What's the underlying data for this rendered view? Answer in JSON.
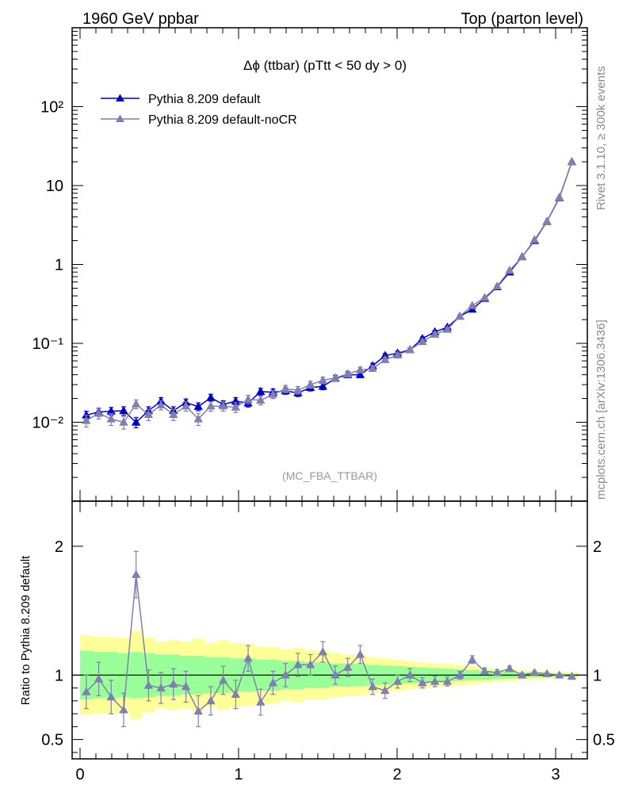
{
  "header": {
    "left": "1960 GeV ppbar",
    "right": "Top (parton level)"
  },
  "side_labels": {
    "rivet": "Rivet 3.1.10, ≥ 300k events",
    "mcplots": "mcplots.cern.ch [arXiv:1306.3436]"
  },
  "colors": {
    "default": "#0000cc",
    "nocr": "#7f7fb2",
    "band_inner": "#99ff99",
    "band_outer": "#ffff99"
  },
  "chart_data": [
    {
      "type": "line",
      "title": "Δϕ (ttbar) (pTtt < 50 dy > 0)",
      "annotation": "(MC_FBA_TTBAR)",
      "xlim": [
        -0.05,
        3.2
      ],
      "ylim": [
        0.001,
        1000
      ],
      "yscale": "log",
      "yticks": [
        "10⁻²",
        "10⁻¹",
        "1",
        "10",
        "10²"
      ],
      "legend_position": "top-left",
      "x": [
        0.0393,
        0.1178,
        0.1963,
        0.2749,
        0.3534,
        0.432,
        0.5105,
        0.589,
        0.6676,
        0.7461,
        0.8247,
        0.9032,
        0.9817,
        1.0603,
        1.1388,
        1.2174,
        1.2959,
        1.3744,
        1.453,
        1.5315,
        1.6101,
        1.6886,
        1.7671,
        1.8457,
        1.9242,
        2.0028,
        2.0813,
        2.1598,
        2.2384,
        2.3169,
        2.3955,
        2.474,
        2.5525,
        2.6311,
        2.7096,
        2.7882,
        2.8667,
        2.9452,
        3.0238,
        3.1023
      ],
      "series": [
        {
          "name": "Pythia 8.209 default",
          "marker": "triangle",
          "values": [
            0.0123,
            0.0135,
            0.0138,
            0.014,
            0.01,
            0.014,
            0.0185,
            0.014,
            0.0178,
            0.0158,
            0.0205,
            0.0168,
            0.0185,
            0.0175,
            0.0245,
            0.024,
            0.025,
            0.0235,
            0.0275,
            0.0285,
            0.036,
            0.04,
            0.04,
            0.052,
            0.07,
            0.075,
            0.083,
            0.115,
            0.14,
            0.16,
            0.22,
            0.27,
            0.37,
            0.52,
            0.8,
            1.25,
            2.0,
            3.5,
            7.0,
            20.0
          ],
          "errors": [
            0.0015,
            0.0016,
            0.0016,
            0.0017,
            0.0015,
            0.0017,
            0.002,
            0.0017,
            0.0019,
            0.0018,
            0.0021,
            0.0019,
            0.002,
            0.0019,
            0.0024,
            0.0024,
            0.0024,
            0.0023,
            0.0026,
            0.0027,
            0.003,
            0.0032,
            0.0032,
            0.0037,
            0.0043,
            0.0045,
            0.0047,
            0.0055,
            0.006,
            0.0065,
            0.0075,
            0.0085,
            0.01,
            0.012,
            0.015,
            0.02,
            0.025,
            0.035,
            0.05,
            0.08
          ]
        },
        {
          "name": "Pythia 8.209 default-noCR",
          "marker": "triangle",
          "values": [
            0.0105,
            0.013,
            0.011,
            0.01,
            0.017,
            0.0125,
            0.0165,
            0.0125,
            0.016,
            0.011,
            0.016,
            0.016,
            0.0155,
            0.0195,
            0.019,
            0.0225,
            0.0265,
            0.0255,
            0.03,
            0.034,
            0.0365,
            0.041,
            0.046,
            0.048,
            0.062,
            0.071,
            0.083,
            0.105,
            0.13,
            0.15,
            0.22,
            0.3,
            0.38,
            0.53,
            0.84,
            1.24,
            2.05,
            3.53,
            7.1,
            19.9
          ],
          "errors": [
            0.0018,
            0.002,
            0.0019,
            0.0018,
            0.0022,
            0.002,
            0.0022,
            0.002,
            0.0022,
            0.0019,
            0.0022,
            0.0022,
            0.0022,
            0.0024,
            0.0024,
            0.0026,
            0.0028,
            0.0028,
            0.003,
            0.0032,
            0.0033,
            0.0035,
            0.0037,
            0.0038,
            0.0043,
            0.0046,
            0.005,
            0.0056,
            0.0062,
            0.0067,
            0.008,
            0.0095,
            0.011,
            0.013,
            0.016,
            0.02,
            0.026,
            0.035,
            0.05,
            0.08
          ]
        }
      ]
    },
    {
      "type": "line",
      "ylabel": "Ratio to Pythia 8.209 default",
      "xlim": [
        -0.05,
        3.2
      ],
      "ylim": [
        0.35,
        2.35
      ],
      "xticks": [
        "0",
        "1",
        "2",
        "3"
      ],
      "yticks": [
        "0.5",
        "1",
        "2"
      ],
      "reference_line": 1,
      "x": [
        0.0393,
        0.1178,
        0.1963,
        0.2749,
        0.3534,
        0.432,
        0.5105,
        0.589,
        0.6676,
        0.7461,
        0.8247,
        0.9032,
        0.9817,
        1.0603,
        1.1388,
        1.2174,
        1.2959,
        1.3744,
        1.453,
        1.5315,
        1.6101,
        1.6886,
        1.7671,
        1.8457,
        1.9242,
        2.0028,
        2.0813,
        2.1598,
        2.2384,
        2.3169,
        2.3955,
        2.474,
        2.5525,
        2.6311,
        2.7096,
        2.7882,
        2.8667,
        2.9452,
        3.0238,
        3.1023
      ],
      "band_inner": [
        0.19,
        0.18,
        0.18,
        0.17,
        0.18,
        0.17,
        0.16,
        0.16,
        0.15,
        0.15,
        0.14,
        0.14,
        0.13,
        0.13,
        0.12,
        0.12,
        0.11,
        0.11,
        0.1,
        0.1,
        0.09,
        0.09,
        0.085,
        0.08,
        0.075,
        0.07,
        0.065,
        0.06,
        0.055,
        0.05,
        0.045,
        0.04,
        0.035,
        0.03,
        0.025,
        0.02,
        0.018,
        0.015,
        0.012,
        0.01
      ],
      "band_outer": [
        0.31,
        0.3,
        0.3,
        0.29,
        0.34,
        0.29,
        0.26,
        0.27,
        0.26,
        0.28,
        0.25,
        0.27,
        0.25,
        0.24,
        0.22,
        0.22,
        0.2,
        0.21,
        0.19,
        0.19,
        0.17,
        0.16,
        0.16,
        0.14,
        0.13,
        0.12,
        0.11,
        0.1,
        0.09,
        0.09,
        0.08,
        0.07,
        0.06,
        0.05,
        0.045,
        0.04,
        0.035,
        0.03,
        0.025,
        0.02
      ],
      "series": [
        {
          "name": "Pythia 8.209 default-noCR",
          "values": [
            0.87,
            0.97,
            0.83,
            0.73,
            1.78,
            0.92,
            0.9,
            0.93,
            0.91,
            0.72,
            0.8,
            0.96,
            0.85,
            1.13,
            0.79,
            0.94,
            1.0,
            1.08,
            1.08,
            1.18,
            1.0,
            1.06,
            1.16,
            0.91,
            0.88,
            0.95,
            1.0,
            0.94,
            0.95,
            0.95,
            1.0,
            1.12,
            1.03,
            1.02,
            1.05,
            1.0,
            1.02,
            1.01,
            1.0,
            0.99
          ],
          "errors": [
            0.13,
            0.13,
            0.13,
            0.13,
            0.18,
            0.12,
            0.12,
            0.12,
            0.12,
            0.12,
            0.11,
            0.11,
            0.11,
            0.1,
            0.1,
            0.09,
            0.09,
            0.09,
            0.08,
            0.08,
            0.07,
            0.07,
            0.07,
            0.06,
            0.06,
            0.05,
            0.05,
            0.04,
            0.04,
            0.035,
            0.03,
            0.03,
            0.025,
            0.02,
            0.02,
            0.015,
            0.012,
            0.01,
            0.008,
            0.006
          ]
        }
      ]
    }
  ]
}
